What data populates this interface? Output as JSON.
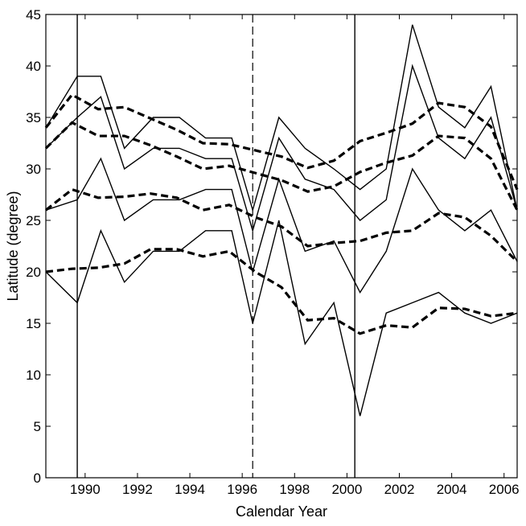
{
  "chart_data": {
    "type": "line",
    "xlabel": "Calendar Year",
    "ylabel": "Latitude (degree)",
    "xlim": [
      1988.5,
      2006.5
    ],
    "ylim": [
      0,
      45
    ],
    "xticks": [
      1990,
      1992,
      1994,
      1996,
      1998,
      2000,
      2002,
      2004,
      2006
    ],
    "yticks": [
      0,
      5,
      10,
      15,
      20,
      25,
      30,
      35,
      40,
      45
    ],
    "grid": false,
    "vertical_lines": [
      {
        "x": 1989.7,
        "style": "solid"
      },
      {
        "x": 1996.4,
        "style": "dashed"
      },
      {
        "x": 2000.3,
        "style": "solid"
      }
    ],
    "series": [
      {
        "style": "solid",
        "x": [
          1988.5,
          1989.7,
          1990.6,
          1991.5,
          1992.6,
          1993.6,
          1994.6,
          1995.6,
          1996.4,
          1997.4,
          1998.4,
          1999.5,
          2000.5,
          2001.5,
          2002.5,
          2003.5,
          2004.5,
          2005.5,
          2006.5
        ],
        "y": [
          34,
          39,
          39,
          32,
          35,
          35,
          33,
          33,
          26,
          35,
          32,
          30,
          28,
          30,
          44,
          36,
          34,
          38,
          26
        ]
      },
      {
        "style": "solid",
        "x": [
          1988.5,
          1989.7,
          1990.6,
          1991.5,
          1992.6,
          1993.6,
          1994.6,
          1995.6,
          1996.4,
          1997.4,
          1998.4,
          1999.5,
          2000.5,
          2001.5,
          2002.5,
          2003.5,
          2004.5,
          2005.5,
          2006.5
        ],
        "y": [
          32,
          35,
          37,
          30,
          32,
          32,
          31,
          31,
          24,
          33,
          29,
          28,
          25,
          27,
          40,
          33,
          31,
          35,
          26
        ]
      },
      {
        "style": "solid",
        "x": [
          1988.5,
          1989.7,
          1990.6,
          1991.5,
          1992.6,
          1993.6,
          1994.6,
          1995.6,
          1996.4,
          1997.4,
          1998.4,
          1999.5,
          2000.5,
          2001.5,
          2002.5,
          2003.5,
          2004.5,
          2005.5,
          2006.5
        ],
        "y": [
          26,
          27,
          31,
          25,
          27,
          27,
          28,
          28,
          20,
          29,
          22,
          23,
          18,
          22,
          30,
          26,
          24,
          26,
          21
        ]
      },
      {
        "style": "solid",
        "x": [
          1988.5,
          1989.7,
          1990.6,
          1991.5,
          1992.6,
          1993.6,
          1994.6,
          1995.6,
          1996.4,
          1997.4,
          1998.4,
          1999.5,
          2000.5,
          2001.5,
          2002.5,
          2003.5,
          2004.5,
          2005.5,
          2006.5
        ],
        "y": [
          20,
          17,
          24,
          19,
          22,
          22,
          24,
          24,
          15,
          25,
          13,
          17,
          6,
          16,
          17,
          18,
          16,
          15,
          16
        ]
      },
      {
        "style": "dashed",
        "x": [
          1988.5,
          1989.5,
          1990.5,
          1991.5,
          1992.5,
          1993.5,
          1994.5,
          1995.5,
          1996.5,
          1997.5,
          1998.5,
          1999.5,
          2000.5,
          2001.5,
          2002.5,
          2003.5,
          2004.5,
          2005.5,
          2006.5
        ],
        "y": [
          34,
          37.2,
          35.8,
          36,
          34.9,
          33.8,
          32.5,
          32.4,
          31.8,
          31.2,
          30.1,
          30.8,
          32.7,
          33.5,
          34.4,
          36.4,
          36,
          34.1,
          28
        ]
      },
      {
        "style": "dashed",
        "x": [
          1988.5,
          1989.5,
          1990.5,
          1991.5,
          1992.5,
          1993.5,
          1994.5,
          1995.5,
          1996.5,
          1997.5,
          1998.5,
          1999.5,
          2000.5,
          2001.5,
          2002.5,
          2003.5,
          2004.5,
          2005.5,
          2006.5
        ],
        "y": [
          32,
          34.5,
          33.2,
          33.2,
          32.3,
          31.2,
          30,
          30.3,
          29.6,
          28.9,
          27.8,
          28.3,
          29.7,
          30.6,
          31.3,
          33.2,
          33,
          31,
          26
        ]
      },
      {
        "style": "dashed",
        "x": [
          1988.5,
          1989.5,
          1990.5,
          1991.5,
          1992.5,
          1993.5,
          1994.5,
          1995.5,
          1996.5,
          1997.5,
          1998.5,
          1999.5,
          2000.5,
          2001.5,
          2002.5,
          2003.5,
          2004.5,
          2005.5,
          2006.5
        ],
        "y": [
          26,
          28,
          27.2,
          27.3,
          27.6,
          27.2,
          26,
          26.5,
          25.3,
          24.4,
          22.5,
          22.8,
          23,
          23.8,
          24,
          25.7,
          25.3,
          23.5,
          21
        ]
      },
      {
        "style": "dashed",
        "x": [
          1988.5,
          1989.5,
          1990.5,
          1991.5,
          1992.5,
          1993.5,
          1994.5,
          1995.5,
          1996.5,
          1997.5,
          1998.5,
          1999.5,
          2000.5,
          2001.5,
          2002.5,
          2003.5,
          2004.5,
          2005.5,
          2006.5
        ],
        "y": [
          20,
          20.3,
          20.4,
          20.8,
          22.2,
          22.2,
          21.5,
          22,
          20,
          18.5,
          15.3,
          15.5,
          14,
          14.8,
          14.6,
          16.5,
          16.4,
          15.7,
          16
        ]
      }
    ]
  }
}
